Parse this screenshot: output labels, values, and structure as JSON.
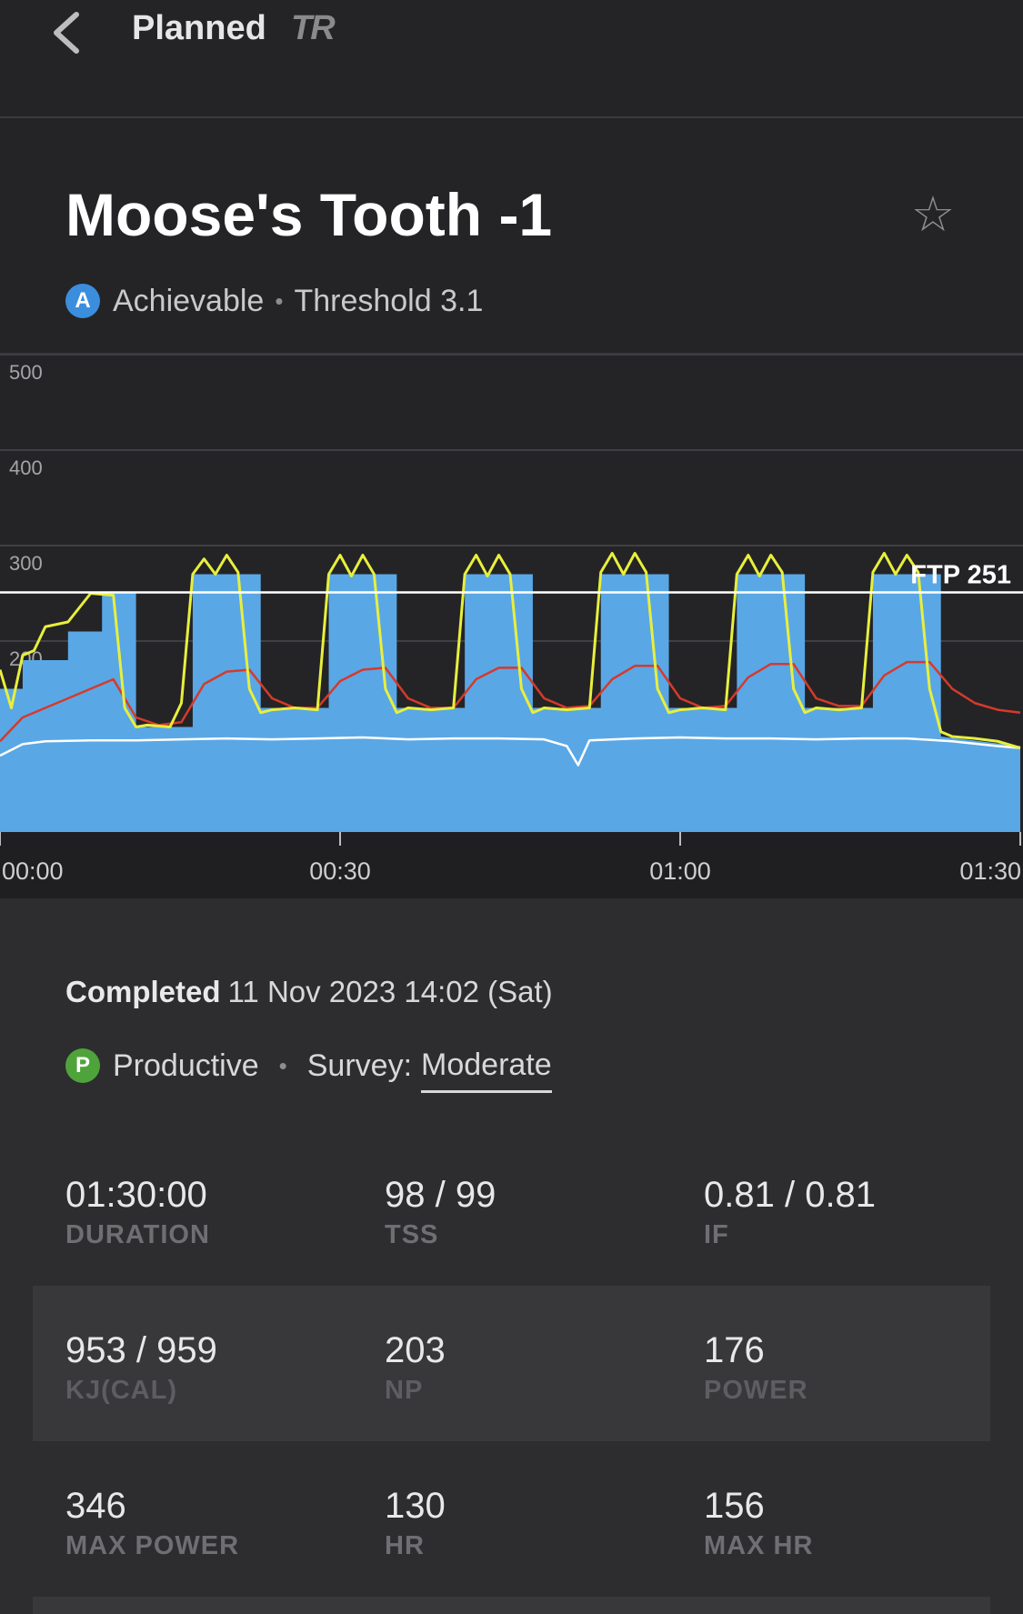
{
  "nav": {
    "title": "Planned",
    "brand": "TR"
  },
  "workout": {
    "title": "Moose's Tooth -1",
    "badge": "A",
    "difficulty": "Achievable",
    "zone": "Threshold 3.1"
  },
  "completion": {
    "label": "Completed",
    "datetime": "11 Nov 2023 14:02 (Sat)",
    "badge": "P",
    "result": "Productive",
    "survey_label": "Survey:",
    "survey_value": "Moderate"
  },
  "stats": [
    [
      {
        "value": "01:30:00",
        "label": "DURATION"
      },
      {
        "value": "98 / 99",
        "label": "TSS"
      },
      {
        "value": "0.81 / 0.81",
        "label": "IF"
      }
    ],
    [
      {
        "value": "953 / 959",
        "label": "KJ(CAL)"
      },
      {
        "value": "203",
        "label": "NP"
      },
      {
        "value": "176",
        "label": "POWER"
      }
    ],
    [
      {
        "value": "346",
        "label": "MAX POWER"
      },
      {
        "value": "130",
        "label": "HR"
      },
      {
        "value": "156",
        "label": "MAX HR"
      }
    ]
  ],
  "colors": {
    "target_fill": "#5aa7e6",
    "power_line": "#e8ef3c",
    "hr_line": "#d63a2a",
    "cadence_line": "#ffffff",
    "ftp_line": "#ffffff"
  },
  "chart_data": {
    "type": "line",
    "ylim": [
      0,
      500
    ],
    "yticks": [
      200,
      300,
      400,
      500
    ],
    "ytick_labels": [
      "200",
      "300",
      "400",
      "500"
    ],
    "xlim_minutes": [
      0,
      90
    ],
    "xticks_minutes": [
      0,
      30,
      60,
      90
    ],
    "xtick_labels": [
      "00:00",
      "00:30",
      "01:00",
      "01:30"
    ],
    "ftp": 251,
    "ftp_label": "FTP 251",
    "target_power": {
      "x_minutes": [
        0,
        2,
        2,
        6,
        6,
        9,
        9,
        12,
        12,
        17,
        17,
        23,
        23,
        29,
        29,
        35,
        35,
        41,
        41,
        47,
        47,
        53,
        53,
        59,
        59,
        65,
        65,
        71,
        71,
        77,
        77,
        83,
        83,
        90
      ],
      "values": [
        150,
        150,
        180,
        180,
        210,
        210,
        250,
        250,
        110,
        110,
        270,
        270,
        130,
        130,
        270,
        270,
        130,
        130,
        270,
        270,
        130,
        130,
        270,
        270,
        130,
        130,
        270,
        270,
        130,
        130,
        270,
        270,
        100,
        90
      ]
    },
    "series": [
      {
        "x_minutes": [
          0,
          1,
          2,
          3,
          4,
          6,
          8,
          10,
          11,
          12,
          13,
          15,
          16,
          17,
          18,
          19,
          20,
          21,
          22,
          23,
          24,
          26,
          28,
          29,
          30,
          31,
          32,
          33,
          34,
          35,
          36,
          38,
          40,
          41,
          42,
          43,
          44,
          45,
          46,
          47,
          48,
          50,
          52,
          53,
          54,
          55,
          56,
          57,
          58,
          59,
          60,
          62,
          64,
          65,
          66,
          67,
          68,
          69,
          70,
          71,
          72,
          74,
          76,
          77,
          78,
          79,
          80,
          81,
          82,
          83,
          84,
          86,
          88,
          90
        ],
        "values": [
          170,
          130,
          185,
          190,
          215,
          220,
          250,
          248,
          130,
          110,
          112,
          110,
          135,
          270,
          286,
          270,
          290,
          272,
          150,
          125,
          128,
          130,
          128,
          270,
          290,
          268,
          290,
          270,
          150,
          125,
          130,
          128,
          130,
          270,
          290,
          268,
          290,
          270,
          150,
          125,
          130,
          128,
          130,
          272,
          292,
          270,
          292,
          272,
          150,
          125,
          128,
          130,
          128,
          270,
          290,
          268,
          290,
          272,
          150,
          125,
          130,
          128,
          130,
          272,
          292,
          270,
          290,
          272,
          150,
          105,
          100,
          98,
          95,
          88
        ]
      },
      {
        "x_minutes": [
          0,
          2,
          4,
          6,
          8,
          10,
          12,
          14,
          16,
          18,
          20,
          22,
          24,
          26,
          28,
          30,
          32,
          34,
          36,
          38,
          40,
          42,
          44,
          46,
          48,
          50,
          52,
          54,
          56,
          58,
          60,
          62,
          64,
          66,
          68,
          70,
          72,
          74,
          76,
          78,
          80,
          82,
          84,
          86,
          88,
          90
        ],
        "values": [
          95,
          120,
          130,
          140,
          150,
          160,
          120,
          112,
          115,
          155,
          168,
          170,
          140,
          130,
          130,
          158,
          170,
          172,
          140,
          130,
          130,
          160,
          172,
          172,
          140,
          130,
          132,
          160,
          174,
          174,
          140,
          130,
          132,
          162,
          176,
          176,
          140,
          132,
          132,
          164,
          178,
          178,
          150,
          135,
          128,
          125
        ]
      },
      {
        "x_minutes": [
          0,
          2,
          4,
          8,
          12,
          16,
          20,
          24,
          28,
          32,
          36,
          40,
          44,
          48,
          50,
          51,
          52,
          56,
          60,
          64,
          68,
          72,
          76,
          80,
          84,
          88,
          90
        ],
        "values": [
          80,
          92,
          95,
          96,
          96,
          97,
          98,
          97,
          98,
          99,
          97,
          98,
          98,
          97,
          90,
          70,
          96,
          98,
          99,
          98,
          98,
          97,
          98,
          98,
          95,
          90,
          88
        ]
      }
    ]
  }
}
